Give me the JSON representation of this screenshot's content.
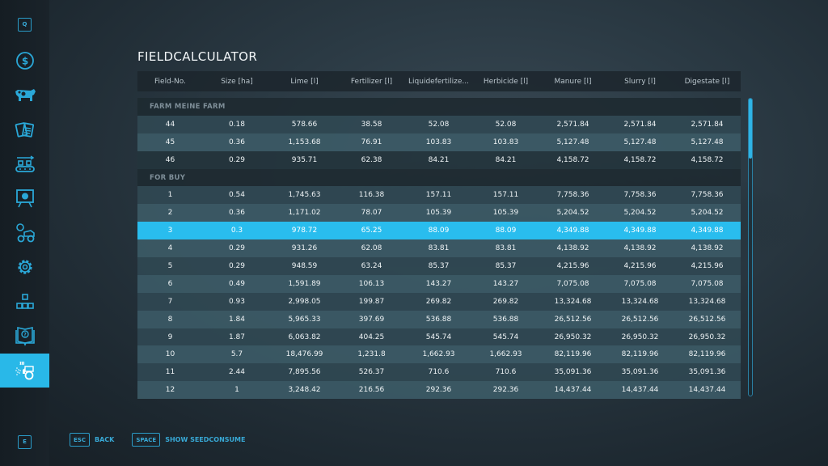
{
  "title": "FIELDCALCULATOR",
  "sidebar": {
    "top_key": "Q",
    "bottom_key": "E",
    "items": [
      {
        "icon": "dollar-icon",
        "label": "Finances"
      },
      {
        "icon": "cow-icon",
        "label": "Animals"
      },
      {
        "icon": "contracts-icon",
        "label": "Contracts"
      },
      {
        "icon": "production-icon",
        "label": "Production"
      },
      {
        "icon": "statistics-icon",
        "label": "Statistics"
      },
      {
        "icon": "vehicles-icon",
        "label": "Vehicles"
      },
      {
        "icon": "gear-icon",
        "label": "Settings"
      },
      {
        "icon": "hierarchy-icon",
        "label": "Multiplayer"
      },
      {
        "icon": "help-book-icon",
        "label": "Help"
      },
      {
        "icon": "sprayer-icon",
        "label": "Fieldcalculator",
        "active": true
      }
    ]
  },
  "table": {
    "headers": [
      "Field-No.",
      "Size [ha]",
      "Lime [l]",
      "Fertilizer [l]",
      "Liquidefertilize...",
      "Herbicide [l]",
      "Manure [l]",
      "Slurry [l]",
      "Digestate [l]"
    ],
    "groups": [
      {
        "label": "FARM MEINE FARM",
        "rows": [
          [
            "44",
            "0.18",
            "578.66",
            "38.58",
            "52.08",
            "52.08",
            "2,571.84",
            "2,571.84",
            "2,571.84"
          ],
          [
            "45",
            "0.36",
            "1,153.68",
            "76.91",
            "103.83",
            "103.83",
            "5,127.48",
            "5,127.48",
            "5,127.48"
          ],
          [
            "46",
            "0.29",
            "935.71",
            "62.38",
            "84.21",
            "84.21",
            "4,158.72",
            "4,158.72",
            "4,158.72"
          ]
        ]
      },
      {
        "label": "FOR BUY",
        "rows": [
          [
            "1",
            "0.54",
            "1,745.63",
            "116.38",
            "157.11",
            "157.11",
            "7,758.36",
            "7,758.36",
            "7,758.36"
          ],
          [
            "2",
            "0.36",
            "1,171.02",
            "78.07",
            "105.39",
            "105.39",
            "5,204.52",
            "5,204.52",
            "5,204.52"
          ],
          [
            "3",
            "0.3",
            "978.72",
            "65.25",
            "88.09",
            "88.09",
            "4,349.88",
            "4,349.88",
            "4,349.88"
          ],
          [
            "4",
            "0.29",
            "931.26",
            "62.08",
            "83.81",
            "83.81",
            "4,138.92",
            "4,138.92",
            "4,138.92"
          ],
          [
            "5",
            "0.29",
            "948.59",
            "63.24",
            "85.37",
            "85.37",
            "4,215.96",
            "4,215.96",
            "4,215.96"
          ],
          [
            "6",
            "0.49",
            "1,591.89",
            "106.13",
            "143.27",
            "143.27",
            "7,075.08",
            "7,075.08",
            "7,075.08"
          ],
          [
            "7",
            "0.93",
            "2,998.05",
            "199.87",
            "269.82",
            "269.82",
            "13,324.68",
            "13,324.68",
            "13,324.68"
          ],
          [
            "8",
            "1.84",
            "5,965.33",
            "397.69",
            "536.88",
            "536.88",
            "26,512.56",
            "26,512.56",
            "26,512.56"
          ],
          [
            "9",
            "1.87",
            "6,063.82",
            "404.25",
            "545.74",
            "545.74",
            "26,950.32",
            "26,950.32",
            "26,950.32"
          ],
          [
            "10",
            "5.7",
            "18,476.99",
            "1,231.8",
            "1,662.93",
            "1,662.93",
            "82,119.96",
            "82,119.96",
            "82,119.96"
          ],
          [
            "11",
            "2.44",
            "7,895.56",
            "526.37",
            "710.6",
            "710.6",
            "35,091.36",
            "35,091.36",
            "35,091.36"
          ],
          [
            "12",
            "1",
            "3,248.42",
            "216.56",
            "292.36",
            "292.36",
            "14,437.44",
            "14,437.44",
            "14,437.44"
          ]
        ]
      }
    ],
    "selected_field": "3"
  },
  "footer": {
    "actions": [
      {
        "key": "ESC",
        "label": "BACK"
      },
      {
        "key": "SPACE",
        "label": "SHOW SEEDCONSUME"
      }
    ]
  },
  "colors": {
    "accent": "#29bdee",
    "key_blue": "#38a9d6"
  }
}
